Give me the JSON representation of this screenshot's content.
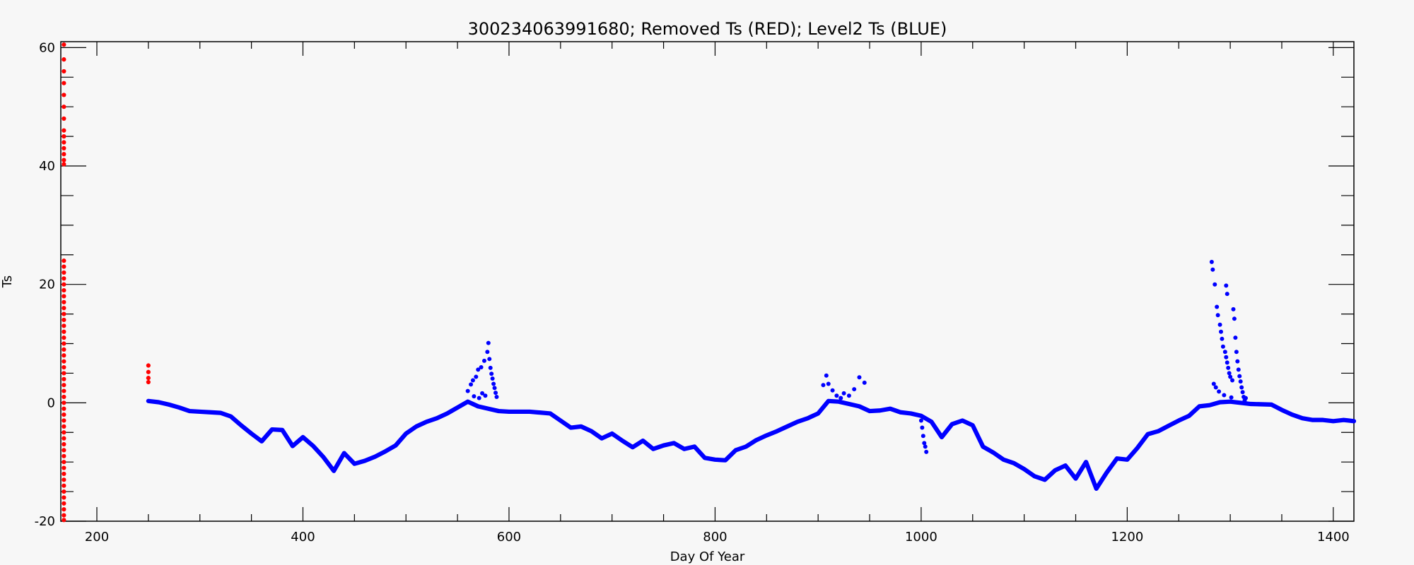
{
  "chart_data": {
    "type": "scatter",
    "title": "300234063991680; Removed Ts (RED); Level2 Ts (BLUE)",
    "xlabel": "Day Of Year",
    "ylabel": "Ts",
    "xlim": [
      165,
      1420
    ],
    "ylim": [
      -20,
      61
    ],
    "xticks": [
      200,
      400,
      600,
      800,
      1000,
      1200,
      1400
    ],
    "yticks": [
      -20,
      0,
      20,
      40,
      60
    ],
    "grid": false,
    "colors": {
      "removed": "#ff0000",
      "level2": "#0000ff",
      "background": "#f7f7f7",
      "axis": "#000000"
    },
    "series": [
      {
        "key": "removed",
        "points": [
          [
            168,
            60.5
          ],
          [
            168,
            58
          ],
          [
            168,
            56
          ],
          [
            168,
            54
          ],
          [
            168,
            52
          ],
          [
            168,
            50
          ],
          [
            168,
            48
          ],
          [
            168,
            46
          ],
          [
            168,
            45
          ],
          [
            168,
            44
          ],
          [
            168,
            43
          ],
          [
            168,
            42
          ],
          [
            168,
            41
          ],
          [
            168,
            40.3
          ],
          [
            168,
            24
          ],
          [
            168,
            23
          ],
          [
            168,
            22
          ],
          [
            168,
            21
          ],
          [
            168,
            20
          ],
          [
            168,
            19
          ],
          [
            168,
            18
          ],
          [
            168,
            17
          ],
          [
            168,
            16
          ],
          [
            168,
            15
          ],
          [
            168,
            14
          ],
          [
            168,
            13
          ],
          [
            168,
            12
          ],
          [
            168,
            11
          ],
          [
            168,
            10
          ],
          [
            168,
            9
          ],
          [
            168,
            8
          ],
          [
            168,
            7
          ],
          [
            168,
            6
          ],
          [
            168,
            5
          ],
          [
            168,
            4
          ],
          [
            168,
            3
          ],
          [
            168,
            2
          ],
          [
            168,
            1
          ],
          [
            168,
            0
          ],
          [
            168,
            -1
          ],
          [
            168,
            -2
          ],
          [
            168,
            -3
          ],
          [
            168,
            -4
          ],
          [
            168,
            -5
          ],
          [
            168,
            -6
          ],
          [
            168,
            -7
          ],
          [
            168,
            -8
          ],
          [
            168,
            -9
          ],
          [
            168,
            -10
          ],
          [
            168,
            -11
          ],
          [
            168,
            -12
          ],
          [
            168,
            -13
          ],
          [
            168,
            -14
          ],
          [
            168,
            -15
          ],
          [
            168,
            -16
          ],
          [
            168,
            -17
          ],
          [
            168,
            -18
          ],
          [
            168,
            -19
          ],
          [
            168,
            -19.8
          ],
          [
            250,
            6.3
          ],
          [
            250,
            5.2
          ],
          [
            250,
            4.2
          ],
          [
            250,
            3.5
          ]
        ]
      },
      {
        "key": "level2",
        "line": [
          [
            250,
            0.3
          ],
          [
            260,
            0.1
          ],
          [
            270,
            -0.3
          ],
          [
            280,
            -0.8
          ],
          [
            290,
            -1.4
          ],
          [
            300,
            -1.5
          ],
          [
            310,
            -1.6
          ],
          [
            320,
            -1.7
          ],
          [
            330,
            -2.3
          ],
          [
            340,
            -3.8
          ],
          [
            350,
            -5.2
          ],
          [
            360,
            -6.5
          ],
          [
            370,
            -4.5
          ],
          [
            380,
            -4.6
          ],
          [
            390,
            -7.3
          ],
          [
            400,
            -5.8
          ],
          [
            410,
            -7.3
          ],
          [
            420,
            -9.2
          ],
          [
            430,
            -11.5
          ],
          [
            440,
            -8.5
          ],
          [
            450,
            -10.3
          ],
          [
            460,
            -9.8
          ],
          [
            470,
            -9.1
          ],
          [
            480,
            -8.2
          ],
          [
            490,
            -7.2
          ],
          [
            500,
            -5.2
          ],
          [
            510,
            -4.0
          ],
          [
            520,
            -3.2
          ],
          [
            530,
            -2.6
          ],
          [
            540,
            -1.8
          ],
          [
            550,
            -0.8
          ],
          [
            560,
            0.2
          ],
          [
            570,
            -0.6
          ],
          [
            580,
            -1.0
          ],
          [
            590,
            -1.4
          ],
          [
            600,
            -1.5
          ],
          [
            620,
            -1.5
          ],
          [
            640,
            -1.8
          ],
          [
            650,
            -3.0
          ],
          [
            660,
            -4.2
          ],
          [
            670,
            -4.0
          ],
          [
            680,
            -4.8
          ],
          [
            690,
            -6.0
          ],
          [
            700,
            -5.2
          ],
          [
            710,
            -6.4
          ],
          [
            720,
            -7.5
          ],
          [
            730,
            -6.4
          ],
          [
            740,
            -7.8
          ],
          [
            750,
            -7.2
          ],
          [
            760,
            -6.8
          ],
          [
            770,
            -7.8
          ],
          [
            780,
            -7.4
          ],
          [
            790,
            -9.3
          ],
          [
            800,
            -9.6
          ],
          [
            810,
            -9.7
          ],
          [
            820,
            -8.0
          ],
          [
            830,
            -7.4
          ],
          [
            840,
            -6.3
          ],
          [
            850,
            -5.5
          ],
          [
            860,
            -4.8
          ],
          [
            870,
            -4.0
          ],
          [
            880,
            -3.2
          ],
          [
            890,
            -2.6
          ],
          [
            900,
            -1.8
          ],
          [
            910,
            0.3
          ],
          [
            920,
            0.2
          ],
          [
            930,
            -0.2
          ],
          [
            940,
            -0.6
          ],
          [
            950,
            -1.4
          ],
          [
            960,
            -1.3
          ],
          [
            970,
            -1.0
          ],
          [
            980,
            -1.6
          ],
          [
            990,
            -1.8
          ],
          [
            1000,
            -2.2
          ],
          [
            1010,
            -3.2
          ],
          [
            1020,
            -5.8
          ],
          [
            1030,
            -3.6
          ],
          [
            1040,
            -3.0
          ],
          [
            1050,
            -3.8
          ],
          [
            1060,
            -7.4
          ],
          [
            1070,
            -8.4
          ],
          [
            1080,
            -9.6
          ],
          [
            1090,
            -10.2
          ],
          [
            1100,
            -11.2
          ],
          [
            1110,
            -12.4
          ],
          [
            1120,
            -13.0
          ],
          [
            1130,
            -11.4
          ],
          [
            1140,
            -10.6
          ],
          [
            1150,
            -12.8
          ],
          [
            1160,
            -10.0
          ],
          [
            1170,
            -14.5
          ],
          [
            1180,
            -11.8
          ],
          [
            1190,
            -9.4
          ],
          [
            1200,
            -9.6
          ],
          [
            1210,
            -7.6
          ],
          [
            1220,
            -5.3
          ],
          [
            1230,
            -4.8
          ],
          [
            1240,
            -3.9
          ],
          [
            1250,
            -3.0
          ],
          [
            1260,
            -2.2
          ],
          [
            1270,
            -0.6
          ],
          [
            1280,
            -0.4
          ],
          [
            1290,
            0.1
          ],
          [
            1300,
            0.2
          ],
          [
            1320,
            -0.2
          ],
          [
            1340,
            -0.3
          ],
          [
            1350,
            -1.2
          ],
          [
            1360,
            -2.0
          ],
          [
            1370,
            -2.6
          ],
          [
            1380,
            -2.9
          ],
          [
            1390,
            -2.9
          ],
          [
            1400,
            -3.1
          ],
          [
            1410,
            -2.9
          ],
          [
            1420,
            -3.1
          ]
        ],
        "points": [
          [
            1282,
            23.8
          ],
          [
            1283,
            22.5
          ],
          [
            1285,
            20.0
          ],
          [
            1287,
            16.2
          ],
          [
            1288,
            14.8
          ],
          [
            1290,
            13.2
          ],
          [
            1291,
            12.0
          ],
          [
            1292,
            10.8
          ],
          [
            1293,
            9.5
          ],
          [
            1295,
            8.6
          ],
          [
            1296,
            7.7
          ],
          [
            1297,
            6.8
          ],
          [
            1298,
            5.9
          ],
          [
            1299,
            5.0
          ],
          [
            1300,
            4.4
          ],
          [
            1302,
            3.8
          ],
          [
            1303,
            15.8
          ],
          [
            1304,
            14.2
          ],
          [
            1305,
            11.0
          ],
          [
            1306,
            8.6
          ],
          [
            1307,
            7.0
          ],
          [
            1308,
            5.6
          ],
          [
            1309,
            4.5
          ],
          [
            1310,
            3.6
          ],
          [
            1311,
            2.6
          ],
          [
            1312,
            1.8
          ],
          [
            1313,
            1.0
          ],
          [
            1314,
            0.4
          ],
          [
            1315,
            0.8
          ],
          [
            1284,
            3.2
          ],
          [
            1286,
            2.6
          ],
          [
            1289,
            1.9
          ],
          [
            1294,
            1.3
          ],
          [
            1301,
            0.9
          ],
          [
            1296,
            19.8
          ],
          [
            1297,
            18.4
          ],
          [
            560,
            2.0
          ],
          [
            563,
            3.1
          ],
          [
            565,
            3.8
          ],
          [
            568,
            4.4
          ],
          [
            570,
            5.6
          ],
          [
            573,
            6.0
          ],
          [
            576,
            7.1
          ],
          [
            579,
            8.6
          ],
          [
            580,
            10.1
          ],
          [
            581,
            7.4
          ],
          [
            582,
            5.9
          ],
          [
            583,
            4.9
          ],
          [
            584,
            4.1
          ],
          [
            585,
            3.2
          ],
          [
            586,
            2.5
          ],
          [
            587,
            1.7
          ],
          [
            588,
            1.0
          ],
          [
            566,
            1.1
          ],
          [
            571,
            0.8
          ],
          [
            574,
            1.6
          ],
          [
            577,
            1.2
          ],
          [
            905,
            3.0
          ],
          [
            908,
            4.6
          ],
          [
            910,
            3.2
          ],
          [
            914,
            2.1
          ],
          [
            918,
            1.2
          ],
          [
            922,
            0.8
          ],
          [
            925,
            1.6
          ],
          [
            930,
            1.2
          ],
          [
            935,
            2.3
          ],
          [
            940,
            4.3
          ],
          [
            945,
            3.4
          ],
          [
            1000,
            -3.0
          ],
          [
            1001,
            -4.2
          ],
          [
            1002,
            -5.6
          ],
          [
            1003,
            -6.8
          ],
          [
            1004,
            -7.4
          ],
          [
            1005,
            -8.3
          ]
        ]
      }
    ]
  }
}
